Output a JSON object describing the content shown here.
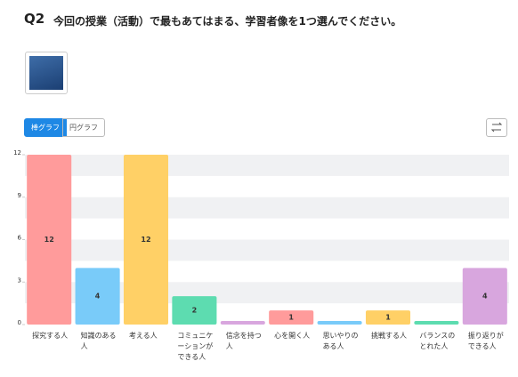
{
  "header": {
    "number": "Q2",
    "title": "今回の授業（活動）で最もあてはまる、学習者像を1つ選んでください。"
  },
  "toggle": {
    "bar": "棒グラフ",
    "pie": "円グラフ"
  },
  "chart_data": {
    "type": "bar",
    "categories": [
      "探究する人",
      "知識のある人",
      "考える人",
      "コミュニケーションができる人",
      "信念を持つ人",
      "心を開く人",
      "思いやりのある人",
      "挑戦する人",
      "バランスのとれた人",
      "振り返りができる人"
    ],
    "values": [
      12,
      4,
      12,
      2,
      0,
      1,
      0,
      1,
      0,
      4
    ],
    "colors": [
      "#ff9b9b",
      "#79cbf9",
      "#ffd066",
      "#5ddcb0",
      "#d8a6de",
      "#ff9b9b",
      "#79cbf9",
      "#ffd066",
      "#5ddcb0",
      "#d8a6de"
    ],
    "ylim": [
      0,
      12
    ],
    "yticks": [
      0,
      3,
      6,
      9,
      12
    ]
  }
}
